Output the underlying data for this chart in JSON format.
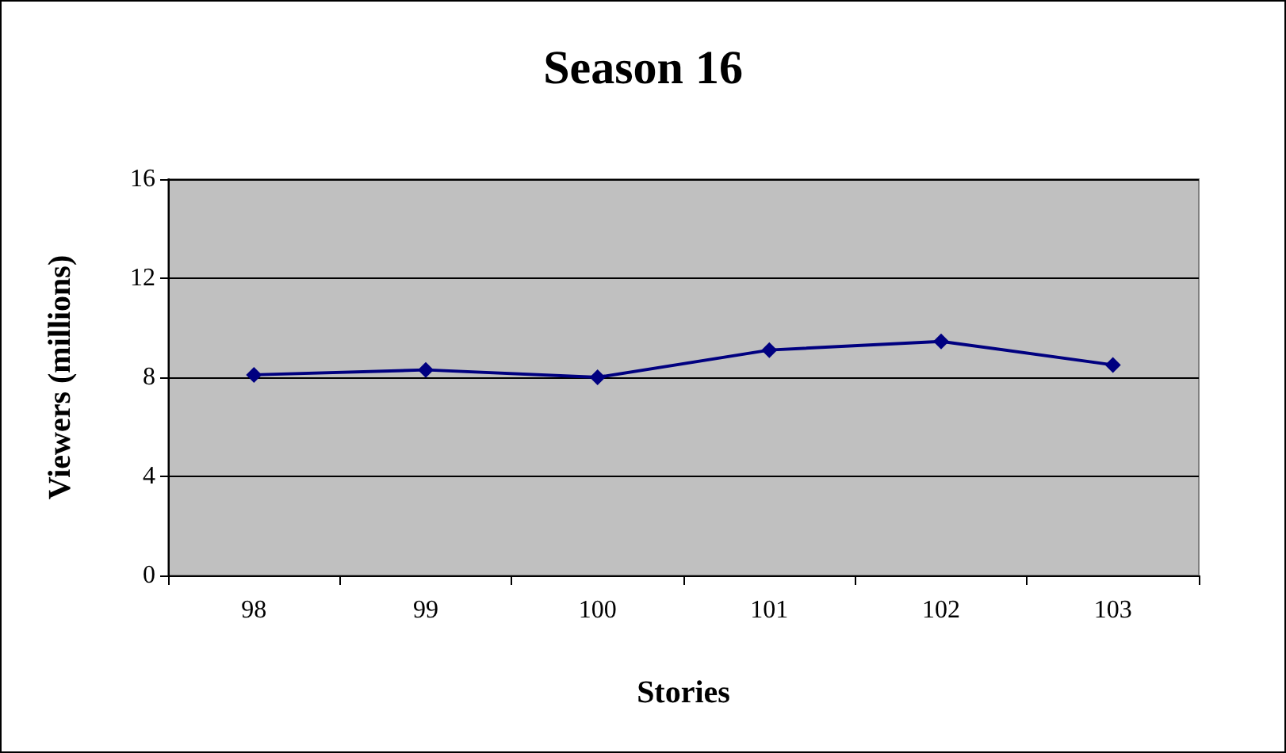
{
  "chart_data": {
    "type": "line",
    "title": "Season 16",
    "xlabel": "Stories",
    "ylabel": "Viewers (millions)",
    "categories": [
      "98",
      "99",
      "100",
      "101",
      "102",
      "103"
    ],
    "series": [
      {
        "color": "#000080",
        "values": [
          8.1,
          8.3,
          8.0,
          9.1,
          9.45,
          8.5
        ]
      }
    ],
    "ylim": [
      0,
      16
    ],
    "yticks": [
      0,
      4,
      8,
      12,
      16
    ],
    "grid": "y",
    "marker": "diamond",
    "line_style": "solid"
  }
}
